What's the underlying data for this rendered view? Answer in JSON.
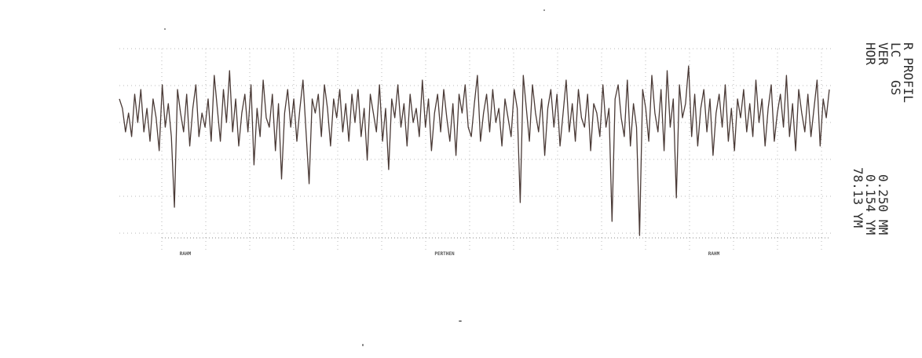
{
  "header": {
    "title": "R PROFIL",
    "filter_label": "LC",
    "filter_value": "GS",
    "ver_label": "VER",
    "ver_value": "0.154",
    "ver_unit": "YM",
    "hor_label": "HOR",
    "hor_value": "78.13",
    "hor_unit": "YM",
    "cutoff_value": "0.250",
    "cutoff_unit": "MM"
  },
  "chart_data": {
    "type": "line",
    "title": "R PROFIL",
    "x_labels": [
      "RAHM",
      "PERTHEN",
      "RAHM"
    ],
    "grid": true,
    "series": [
      {
        "values": [
          2.0,
          1.0,
          -1.5,
          0.5,
          -2.0,
          2.5,
          -0.5,
          3.0,
          -1.5,
          1.0,
          -2.5,
          2.0,
          0.0,
          -3.5,
          3.5,
          -1.0,
          1.5,
          -2.0,
          -9.5,
          3.0,
          0.5,
          -1.5,
          2.5,
          -3.0,
          1.0,
          3.5,
          -2.0,
          0.5,
          -1.0,
          2.0,
          -2.5,
          4.5,
          1.0,
          -2.5,
          3.0,
          -0.5,
          5.0,
          -1.5,
          2.0,
          -3.0,
          0.5,
          2.5,
          -1.5,
          3.5,
          -5.0,
          1.0,
          -2.0,
          4.0,
          0.0,
          -1.0,
          2.5,
          -3.5,
          1.5,
          -6.5,
          0.5,
          3.0,
          -1.0,
          2.0,
          -2.5,
          1.0,
          4.0,
          -1.5,
          -7.0,
          2.0,
          0.5,
          2.5,
          -2.0,
          3.5,
          1.0,
          -3.0,
          2.0,
          0.0,
          3.0,
          -1.5,
          1.5,
          -2.5,
          2.5,
          -0.5,
          3.0,
          -2.0,
          1.0,
          -4.5,
          2.5,
          0.5,
          -1.5,
          3.5,
          -2.5,
          1.0,
          -5.5,
          2.0,
          0.0,
          3.5,
          -1.0,
          1.5,
          -3.0,
          2.5,
          -0.5,
          1.0,
          -2.0,
          4.0,
          -1.0,
          2.0,
          -3.5,
          0.5,
          2.5,
          -1.5,
          3.0,
          0.0,
          -2.5,
          1.5,
          -4.0,
          2.5,
          0.5,
          3.5,
          -1.0,
          -2.0,
          1.5,
          4.5,
          -2.5,
          0.5,
          2.5,
          -1.5,
          3.0,
          -0.5,
          1.0,
          -3.0,
          2.0,
          0.0,
          -2.0,
          3.0,
          1.0,
          -9.0,
          4.5,
          1.0,
          -2.5,
          3.5,
          0.5,
          -1.5,
          2.0,
          -4.0,
          1.0,
          3.0,
          -1.0,
          2.5,
          -3.0,
          0.5,
          4.0,
          -1.5,
          1.5,
          -2.5,
          3.0,
          0.0,
          -1.0,
          2.5,
          -3.5,
          1.5,
          0.5,
          -2.0,
          3.5,
          -1.0,
          1.0,
          -11.0,
          2.0,
          3.5,
          0.0,
          -2.0,
          4.0,
          -3.0,
          1.5,
          -1.0,
          -12.5,
          3.0,
          1.0,
          -2.5,
          4.5,
          0.5,
          -1.5,
          3.0,
          -3.5,
          5.0,
          -1.0,
          2.0,
          -8.5,
          3.5,
          0.0,
          1.5,
          5.5,
          -2.0,
          2.5,
          -3.0,
          1.0,
          3.0,
          -1.5,
          2.0,
          -4.0,
          0.5,
          2.5,
          -1.0,
          3.5,
          -2.5,
          1.0,
          -3.5,
          2.0,
          0.0,
          3.0,
          -1.5,
          1.5,
          -2.0,
          4.0,
          -0.5,
          2.0,
          -3.0,
          1.0,
          3.5,
          -2.5,
          0.5,
          2.5,
          -1.0,
          4.5,
          -2.0,
          1.5,
          -3.5,
          3.0,
          0.5,
          -1.5,
          2.5,
          -2.0,
          1.0,
          4.0,
          -3.0,
          2.0,
          0.0,
          3.0
        ]
      }
    ]
  }
}
